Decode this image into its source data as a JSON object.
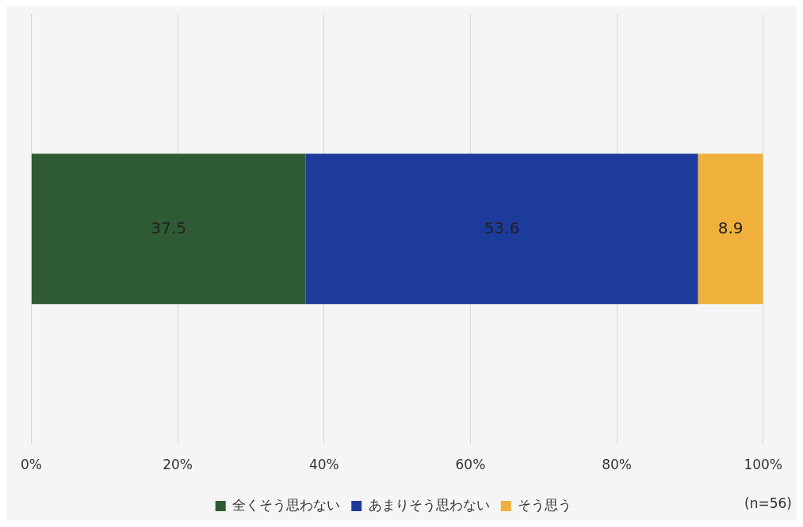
{
  "chart_data": {
    "type": "bar",
    "orientation": "horizontal",
    "stacked": true,
    "categories": [
      null
    ],
    "series": [
      {
        "name": "全くそう思わない",
        "color": "#2e5b34",
        "values": [
          37.5
        ]
      },
      {
        "name": "あまりそう思わない",
        "color": "#1d3b9b",
        "values": [
          53.6
        ]
      },
      {
        "name": "そう思う",
        "color": "#f0b13c",
        "values": [
          8.9
        ]
      }
    ],
    "xlim": [
      0,
      100
    ],
    "xticks": [
      {
        "value": 0,
        "label": "0%"
      },
      {
        "value": 20,
        "label": "20%"
      },
      {
        "value": 40,
        "label": "40%"
      },
      {
        "value": 60,
        "label": "60%"
      },
      {
        "value": 80,
        "label": "80%"
      },
      {
        "value": 100,
        "label": "100%"
      }
    ],
    "grid": "x",
    "legend": "bottom",
    "tick_labels": "x",
    "data_labels": true,
    "annotations": [
      "(n=56)"
    ]
  }
}
